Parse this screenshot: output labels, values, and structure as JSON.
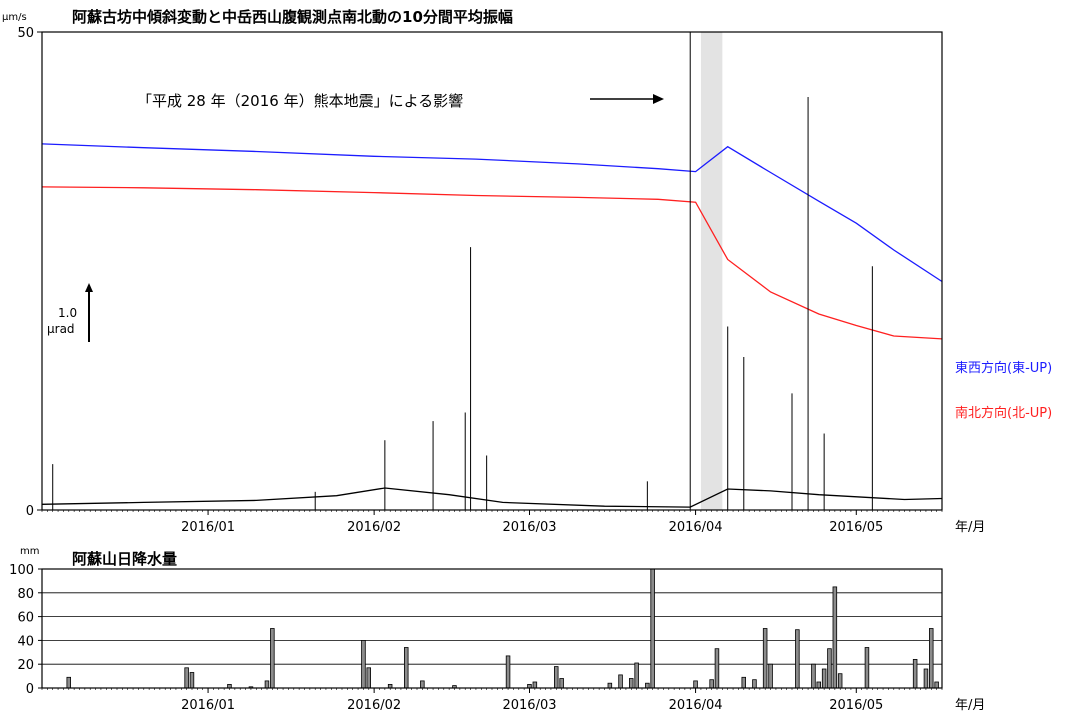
{
  "chart_data": [
    {
      "type": "line",
      "title": "阿蘇古坊中傾斜変動と中岳西山腹観測点南北動の10分間平均振幅",
      "yunit": "μm/s",
      "ylim": [
        0,
        50
      ],
      "yticks": [
        0,
        50
      ],
      "xlim": [
        "2015-12-01",
        "2016-05-17"
      ],
      "xticks": [
        {
          "label": "2016/01",
          "date": "2016-01-01"
        },
        {
          "label": "2016/02",
          "date": "2016-02-01"
        },
        {
          "label": "2016/03",
          "date": "2016-03-01"
        },
        {
          "label": "2016/04",
          "date": "2016-04-01"
        },
        {
          "label": "2016/05",
          "date": "2016-05-01"
        }
      ],
      "xunit": "年/月",
      "scale_bar": {
        "value": "1.0",
        "unit": "μrad"
      },
      "shaded_period": {
        "start": "2016-04-02",
        "end": "2016-04-06"
      },
      "annotation": "「平成 28 年（2016 年）熊本地震」による影響",
      "series": [
        {
          "name": "東西方向(東-UP)",
          "color": "#1c1cff",
          "values": [
            {
              "x": "2015-12-01",
              "y": 38.3
            },
            {
              "x": "2015-12-20",
              "y": 37.9
            },
            {
              "x": "2016-01-10",
              "y": 37.5
            },
            {
              "x": "2016-02-01",
              "y": 37.0
            },
            {
              "x": "2016-02-20",
              "y": 36.7
            },
            {
              "x": "2016-03-10",
              "y": 36.2
            },
            {
              "x": "2016-03-25",
              "y": 35.7
            },
            {
              "x": "2016-04-01",
              "y": 35.4
            },
            {
              "x": "2016-04-07",
              "y": 38.0
            },
            {
              "x": "2016-04-15",
              "y": 35.3
            },
            {
              "x": "2016-04-24",
              "y": 32.3
            },
            {
              "x": "2016-05-01",
              "y": 30.0
            },
            {
              "x": "2016-05-08",
              "y": 27.2
            },
            {
              "x": "2016-05-17",
              "y": 23.9
            }
          ]
        },
        {
          "name": "南北方向(北-UP)",
          "color": "#ff2020",
          "values": [
            {
              "x": "2015-12-01",
              "y": 33.8
            },
            {
              "x": "2015-12-20",
              "y": 33.7
            },
            {
              "x": "2016-01-10",
              "y": 33.5
            },
            {
              "x": "2016-02-01",
              "y": 33.2
            },
            {
              "x": "2016-02-20",
              "y": 32.9
            },
            {
              "x": "2016-03-10",
              "y": 32.7
            },
            {
              "x": "2016-03-25",
              "y": 32.5
            },
            {
              "x": "2016-04-01",
              "y": 32.2
            },
            {
              "x": "2016-04-07",
              "y": 26.2
            },
            {
              "x": "2016-04-15",
              "y": 22.8
            },
            {
              "x": "2016-04-24",
              "y": 20.5
            },
            {
              "x": "2016-05-01",
              "y": 19.3
            },
            {
              "x": "2016-05-08",
              "y": 18.2
            },
            {
              "x": "2016-05-17",
              "y": 17.9
            }
          ]
        },
        {
          "name": "10分間平均振幅",
          "color": "#000000",
          "values": [
            {
              "x": "2015-12-01",
              "y": 0.6
            },
            {
              "x": "2015-12-20",
              "y": 0.8
            },
            {
              "x": "2016-01-10",
              "y": 1.0
            },
            {
              "x": "2016-01-25",
              "y": 1.5
            },
            {
              "x": "2016-02-03",
              "y": 2.3
            },
            {
              "x": "2016-02-15",
              "y": 1.6
            },
            {
              "x": "2016-02-25",
              "y": 0.8
            },
            {
              "x": "2016-03-15",
              "y": 0.4
            },
            {
              "x": "2016-03-31",
              "y": 0.3
            },
            {
              "x": "2016-04-07",
              "y": 2.2
            },
            {
              "x": "2016-04-15",
              "y": 2.0
            },
            {
              "x": "2016-04-24",
              "y": 1.6
            },
            {
              "x": "2016-05-10",
              "y": 1.1
            },
            {
              "x": "2016-05-17",
              "y": 1.2
            }
          ],
          "spikes": [
            {
              "x": "2015-12-03",
              "y": 4.8
            },
            {
              "x": "2016-01-21",
              "y": 1.9
            },
            {
              "x": "2016-02-03",
              "y": 7.3
            },
            {
              "x": "2016-02-12",
              "y": 9.3
            },
            {
              "x": "2016-02-18",
              "y": 10.2
            },
            {
              "x": "2016-02-19",
              "y": 27.5
            },
            {
              "x": "2016-02-22",
              "y": 5.7
            },
            {
              "x": "2016-03-23",
              "y": 3.0
            },
            {
              "x": "2016-03-31",
              "y": 50
            },
            {
              "x": "2016-04-07",
              "y": 19.2
            },
            {
              "x": "2016-04-10",
              "y": 16.0
            },
            {
              "x": "2016-04-19",
              "y": 12.2
            },
            {
              "x": "2016-04-22",
              "y": 43.2
            },
            {
              "x": "2016-04-25",
              "y": 8.0
            },
            {
              "x": "2016-05-04",
              "y": 25.5
            }
          ]
        }
      ]
    },
    {
      "type": "bar",
      "title": "阿蘇山日降水量",
      "yunit": "mm",
      "ylim": [
        0,
        100
      ],
      "yticks": [
        0,
        20,
        40,
        60,
        80,
        100
      ],
      "xunit": "年/月",
      "xticks": [
        "2016/01",
        "2016/02",
        "2016/03",
        "2016/04",
        "2016/05"
      ],
      "bars": [
        {
          "x": "2015-12-06",
          "y": 9
        },
        {
          "x": "2015-12-28",
          "y": 17
        },
        {
          "x": "2015-12-29",
          "y": 13
        },
        {
          "x": "2016-01-05",
          "y": 3
        },
        {
          "x": "2016-01-09",
          "y": 1
        },
        {
          "x": "2016-01-12",
          "y": 6
        },
        {
          "x": "2016-01-13",
          "y": 50
        },
        {
          "x": "2016-01-30",
          "y": 40
        },
        {
          "x": "2016-01-31",
          "y": 17
        },
        {
          "x": "2016-02-04",
          "y": 3
        },
        {
          "x": "2016-02-07",
          "y": 34
        },
        {
          "x": "2016-02-10",
          "y": 6
        },
        {
          "x": "2016-02-16",
          "y": 2
        },
        {
          "x": "2016-02-26",
          "y": 27
        },
        {
          "x": "2016-03-01",
          "y": 3
        },
        {
          "x": "2016-03-02",
          "y": 5
        },
        {
          "x": "2016-03-06",
          "y": 18
        },
        {
          "x": "2016-03-07",
          "y": 8
        },
        {
          "x": "2016-03-16",
          "y": 4
        },
        {
          "x": "2016-03-18",
          "y": 11
        },
        {
          "x": "2016-03-20",
          "y": 8
        },
        {
          "x": "2016-03-21",
          "y": 21
        },
        {
          "x": "2016-03-23",
          "y": 4
        },
        {
          "x": "2016-03-24",
          "y": 100
        },
        {
          "x": "2016-04-01",
          "y": 6
        },
        {
          "x": "2016-04-04",
          "y": 7
        },
        {
          "x": "2016-04-05",
          "y": 33
        },
        {
          "x": "2016-04-10",
          "y": 9
        },
        {
          "x": "2016-04-12",
          "y": 7
        },
        {
          "x": "2016-04-14",
          "y": 50
        },
        {
          "x": "2016-04-15",
          "y": 20
        },
        {
          "x": "2016-04-20",
          "y": 49
        },
        {
          "x": "2016-04-23",
          "y": 20
        },
        {
          "x": "2016-04-24",
          "y": 5
        },
        {
          "x": "2016-04-25",
          "y": 16
        },
        {
          "x": "2016-04-26",
          "y": 33
        },
        {
          "x": "2016-04-27",
          "y": 85
        },
        {
          "x": "2016-04-28",
          "y": 12
        },
        {
          "x": "2016-05-03",
          "y": 34
        },
        {
          "x": "2016-05-12",
          "y": 24
        },
        {
          "x": "2016-05-14",
          "y": 16
        },
        {
          "x": "2016-05-15",
          "y": 50
        },
        {
          "x": "2016-05-16",
          "y": 5
        }
      ]
    }
  ]
}
